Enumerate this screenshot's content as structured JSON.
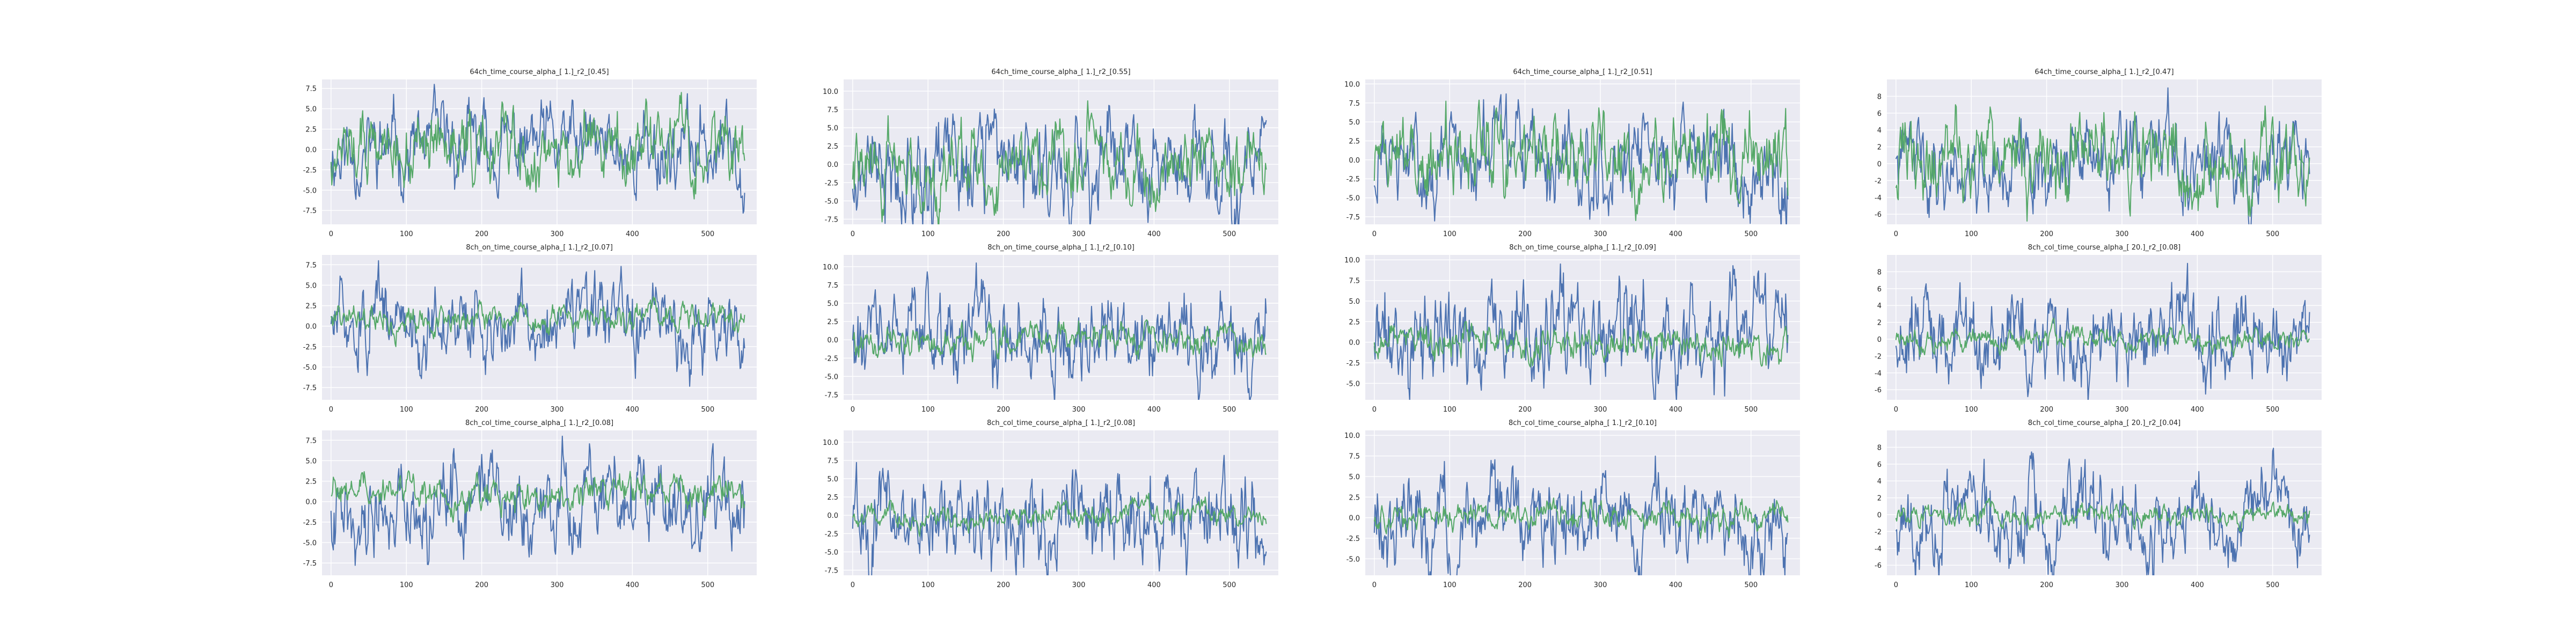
{
  "figure": {
    "background": "#ffffff",
    "axes_facecolor": "#eaeaf2",
    "grid_color": "#ffffff"
  },
  "series_colors": [
    "#4c72b0",
    "#55a868"
  ],
  "chart_data": [
    {
      "type": "line",
      "title": "64ch_time_course_alpha_[ 1.]_r2_[0.45]",
      "xlim": [
        -12,
        565
      ],
      "ylim": [
        -9.2,
        8.6
      ],
      "xticks": [
        0,
        100,
        200,
        300,
        400,
        500
      ],
      "yticks": [
        -7.5,
        -5.0,
        -2.5,
        0.0,
        2.5,
        5.0,
        7.5
      ],
      "series": [
        {
          "amplitude": 8.0,
          "offset": 0.0,
          "seed": 11
        },
        {
          "amplitude": 7.0,
          "offset": 0.0,
          "seed": 12
        }
      ],
      "grid": true
    },
    {
      "type": "line",
      "title": "64ch_time_course_alpha_[ 1.]_r2_[0.55]",
      "xlim": [
        -12,
        565
      ],
      "ylim": [
        -8.2,
        11.6
      ],
      "xticks": [
        0,
        100,
        200,
        300,
        400,
        500
      ],
      "yticks": [
        -7.5,
        -5.0,
        -2.5,
        0.0,
        2.5,
        5.0,
        7.5,
        10.0
      ],
      "series": [
        {
          "amplitude": 10.5,
          "offset": 0.0,
          "seed": 21
        },
        {
          "amplitude": 9.5,
          "offset": 0.0,
          "seed": 22
        }
      ],
      "grid": true
    },
    {
      "type": "line",
      "title": "64ch_time_course_alpha_[ 1.]_r2_[0.51]",
      "xlim": [
        -12,
        565
      ],
      "ylim": [
        -8.5,
        10.6
      ],
      "xticks": [
        0,
        100,
        200,
        300,
        400,
        500
      ],
      "yticks": [
        -7.5,
        -5.0,
        -2.5,
        0.0,
        2.5,
        5.0,
        7.5,
        10.0
      ],
      "series": [
        {
          "amplitude": 9.5,
          "offset": 0.0,
          "seed": 31
        },
        {
          "amplitude": 8.0,
          "offset": 0.0,
          "seed": 32
        }
      ],
      "grid": true
    },
    {
      "type": "line",
      "title": "64ch_time_course_alpha_[ 1.]_r2_[0.47]",
      "xlim": [
        -12,
        565
      ],
      "ylim": [
        -7.2,
        10.0
      ],
      "xticks": [
        0,
        100,
        200,
        300,
        400,
        500
      ],
      "yticks": [
        -6,
        -4,
        -2,
        0,
        2,
        4,
        6,
        8
      ],
      "series": [
        {
          "amplitude": 9.0,
          "offset": 0.0,
          "seed": 41
        },
        {
          "amplitude": 7.0,
          "offset": 0.0,
          "seed": 42
        }
      ],
      "grid": true
    },
    {
      "type": "line",
      "title": "8ch_on_time_course_alpha_[ 1.]_r2_[0.07]",
      "xlim": [
        -12,
        565
      ],
      "ylim": [
        -9.0,
        8.7
      ],
      "xticks": [
        0,
        100,
        200,
        300,
        400,
        500
      ],
      "yticks": [
        -7.5,
        -5.0,
        -2.5,
        0.0,
        2.5,
        5.0,
        7.5
      ],
      "series": [
        {
          "amplitude": 8.0,
          "offset": 0.0,
          "seed": 51
        },
        {
          "amplitude": 3.5,
          "offset": 1.0,
          "seed": 52
        }
      ],
      "grid": true
    },
    {
      "type": "line",
      "title": "8ch_on_time_course_alpha_[ 1.]_r2_[0.10]",
      "xlim": [
        -12,
        565
      ],
      "ylim": [
        -8.2,
        11.6
      ],
      "xticks": [
        0,
        100,
        200,
        300,
        400,
        500
      ],
      "yticks": [
        -7.5,
        -5.0,
        -2.5,
        0.0,
        2.5,
        5.0,
        7.5,
        10.0
      ],
      "series": [
        {
          "amplitude": 10.5,
          "offset": 0.0,
          "seed": 61
        },
        {
          "amplitude": 3.0,
          "offset": 0.0,
          "seed": 62
        }
      ],
      "grid": true
    },
    {
      "type": "line",
      "title": "8ch_on_time_course_alpha_[ 1.]_r2_[0.09]",
      "xlim": [
        -12,
        565
      ],
      "ylim": [
        -7.0,
        10.6
      ],
      "xticks": [
        0,
        100,
        200,
        300,
        400,
        500
      ],
      "yticks": [
        -5.0,
        -2.5,
        0.0,
        2.5,
        5.0,
        7.5,
        10.0
      ],
      "series": [
        {
          "amplitude": 9.5,
          "offset": 0.0,
          "seed": 71
        },
        {
          "amplitude": 3.0,
          "offset": 0.0,
          "seed": 72
        }
      ],
      "grid": true
    },
    {
      "type": "line",
      "title": "8ch_col_time_course_alpha_[ 20.]_r2_[0.08]",
      "xlim": [
        -12,
        565
      ],
      "ylim": [
        -7.2,
        10.0
      ],
      "xticks": [
        0,
        100,
        200,
        300,
        400,
        500
      ],
      "yticks": [
        -6,
        -4,
        -2,
        0,
        2,
        4,
        6,
        8
      ],
      "series": [
        {
          "amplitude": 9.0,
          "offset": 0.0,
          "seed": 81
        },
        {
          "amplitude": 2.5,
          "offset": 0.0,
          "seed": 82
        }
      ],
      "grid": true
    },
    {
      "type": "line",
      "title": "8ch_col_time_course_alpha_[ 1.]_r2_[0.08]",
      "xlim": [
        -12,
        565
      ],
      "ylim": [
        -9.0,
        8.7
      ],
      "xticks": [
        0,
        100,
        200,
        300,
        400,
        500
      ],
      "yticks": [
        -7.5,
        -5.0,
        -2.5,
        0.0,
        2.5,
        5.0,
        7.5
      ],
      "series": [
        {
          "amplitude": 8.0,
          "offset": 0.0,
          "seed": 91
        },
        {
          "amplitude": 3.5,
          "offset": 1.0,
          "seed": 92
        }
      ],
      "grid": true
    },
    {
      "type": "line",
      "title": "8ch_col_time_course_alpha_[ 1.]_r2_[0.08]",
      "xlim": [
        -12,
        565
      ],
      "ylim": [
        -8.2,
        11.6
      ],
      "xticks": [
        0,
        100,
        200,
        300,
        400,
        500
      ],
      "yticks": [
        -7.5,
        -5.0,
        -2.5,
        0.0,
        2.5,
        5.0,
        7.5,
        10.0
      ],
      "series": [
        {
          "amplitude": 10.5,
          "offset": 0.0,
          "seed": 101
        },
        {
          "amplitude": 3.0,
          "offset": 0.0,
          "seed": 102
        }
      ],
      "grid": true
    },
    {
      "type": "line",
      "title": "8ch_col_time_course_alpha_[ 1.]_r2_[0.10]",
      "xlim": [
        -12,
        565
      ],
      "ylim": [
        -7.0,
        10.6
      ],
      "xticks": [
        0,
        100,
        200,
        300,
        400,
        500
      ],
      "yticks": [
        -5.0,
        -2.5,
        0.0,
        2.5,
        5.0,
        7.5,
        10.0
      ],
      "series": [
        {
          "amplitude": 9.5,
          "offset": 0.0,
          "seed": 111
        },
        {
          "amplitude": 2.5,
          "offset": 0.0,
          "seed": 112
        }
      ],
      "grid": true
    },
    {
      "type": "line",
      "title": "8ch_col_time_course_alpha_[ 20.]_r2_[0.04]",
      "xlim": [
        -12,
        565
      ],
      "ylim": [
        -7.2,
        10.0
      ],
      "xticks": [
        0,
        100,
        200,
        300,
        400,
        500
      ],
      "yticks": [
        -6,
        -4,
        -2,
        0,
        2,
        4,
        6,
        8
      ],
      "series": [
        {
          "amplitude": 9.0,
          "offset": 0.0,
          "seed": 121
        },
        {
          "amplitude": 2.0,
          "offset": 0.0,
          "seed": 122
        }
      ],
      "grid": true
    }
  ]
}
